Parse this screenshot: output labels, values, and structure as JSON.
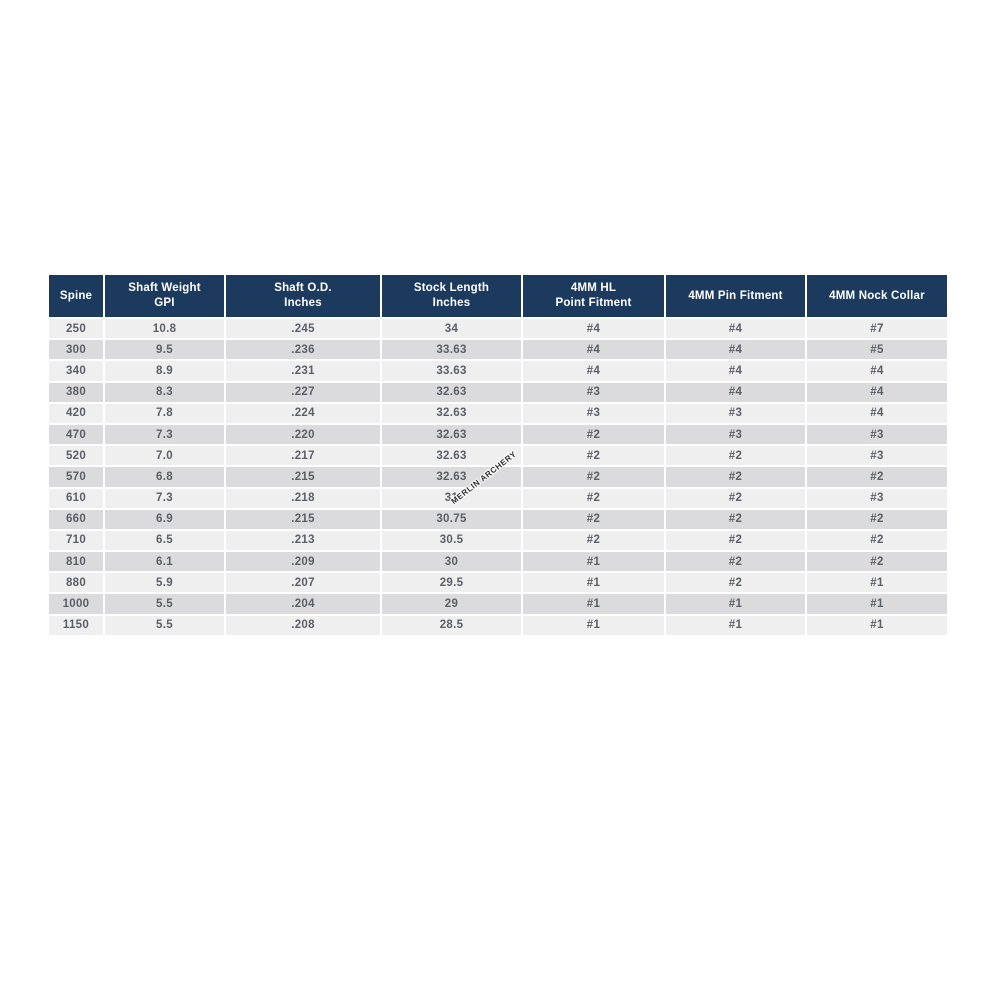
{
  "colors": {
    "header_bg": "#1c3a5e",
    "header_text": "#ffffff",
    "row_light": "#efeff0",
    "row_dark": "#dbdbdd",
    "cell_text": "#5a5f67"
  },
  "watermark": {
    "text": "MERLIN ARCHERY"
  },
  "chart_data": {
    "type": "table",
    "columns": [
      {
        "id": "spine",
        "label": [
          "Spine"
        ]
      },
      {
        "id": "shaft-weight-gpi",
        "label": [
          "Shaft Weight",
          "GPI"
        ]
      },
      {
        "id": "shaft-od-inches",
        "label": [
          "Shaft O.D.",
          "Inches"
        ]
      },
      {
        "id": "stock-length-inches",
        "label": [
          "Stock Length",
          "Inches"
        ]
      },
      {
        "id": "4mm-hl-point-fitment",
        "label": [
          "4MM HL",
          "Point Fitment"
        ]
      },
      {
        "id": "4mm-pin-fitment",
        "label": [
          "4MM Pin Fitment"
        ]
      },
      {
        "id": "4mm-nock-collar",
        "label": [
          "4MM Nock Collar"
        ]
      }
    ],
    "rows": [
      [
        "250",
        "10.8",
        ".245",
        "34",
        "#4",
        "#4",
        "#7"
      ],
      [
        "300",
        "9.5",
        ".236",
        "33.63",
        "#4",
        "#4",
        "#5"
      ],
      [
        "340",
        "8.9",
        ".231",
        "33.63",
        "#4",
        "#4",
        "#4"
      ],
      [
        "380",
        "8.3",
        ".227",
        "32.63",
        "#3",
        "#4",
        "#4"
      ],
      [
        "420",
        "7.8",
        ".224",
        "32.63",
        "#3",
        "#3",
        "#4"
      ],
      [
        "470",
        "7.3",
        ".220",
        "32.63",
        "#2",
        "#3",
        "#3"
      ],
      [
        "520",
        "7.0",
        ".217",
        "32.63",
        "#2",
        "#2",
        "#3"
      ],
      [
        "570",
        "6.8",
        ".215",
        "32.63",
        "#2",
        "#2",
        "#2"
      ],
      [
        "610",
        "7.3",
        ".218",
        "31",
        "#2",
        "#2",
        "#3"
      ],
      [
        "660",
        "6.9",
        ".215",
        "30.75",
        "#2",
        "#2",
        "#2"
      ],
      [
        "710",
        "6.5",
        ".213",
        "30.5",
        "#2",
        "#2",
        "#2"
      ],
      [
        "810",
        "6.1",
        ".209",
        "30",
        "#1",
        "#2",
        "#2"
      ],
      [
        "880",
        "5.9",
        ".207",
        "29.5",
        "#1",
        "#2",
        "#1"
      ],
      [
        "1000",
        "5.5",
        ".204",
        "29",
        "#1",
        "#1",
        "#1"
      ],
      [
        "1150",
        "5.5",
        ".208",
        "28.5",
        "#1",
        "#1",
        "#1"
      ]
    ]
  }
}
